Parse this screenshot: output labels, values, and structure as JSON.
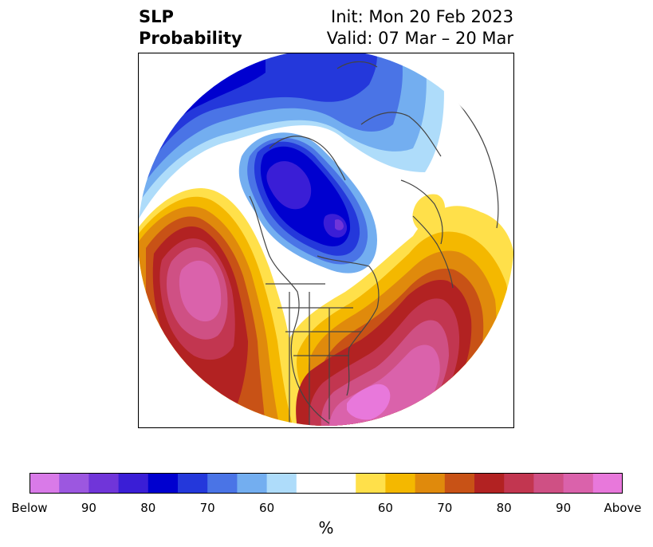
{
  "title": {
    "variable": "SLP",
    "product": "Probability",
    "init": "Init: Mon 20 Feb 2023",
    "valid": "Valid: 07 Mar – 20 Mar"
  },
  "colorbar": {
    "units": "%",
    "tick_labels": [
      "Below",
      "90",
      "80",
      "70",
      "60",
      "60",
      "70",
      "80",
      "90",
      "Above"
    ],
    "colors": [
      "#d97ae8",
      "#9c57e0",
      "#7035d9",
      "#3a1ed6",
      "#0000cf",
      "#2438db",
      "#4a74e6",
      "#73aef0",
      "#aedcfa",
      "#ffffff",
      "#ffffff",
      "#ffe04a",
      "#f4b800",
      "#e08a0c",
      "#c85216",
      "#b22222",
      "#c23650",
      "#cf5084",
      "#da62ab",
      "#e878db"
    ]
  },
  "map": {
    "projection": "north-polar-stereographic",
    "colors": {
      "deep_low": "#0000cf",
      "low_purple": "#3a1ed6",
      "mid_blue": "#2438db",
      "light_blue": "#4a74e6",
      "pale_blue": "#73aef0",
      "very_pale_blue": "#aedcfa",
      "yellow": "#ffe04a",
      "gold": "#f4b800",
      "orange": "#e08a0c",
      "rust": "#c85216",
      "red": "#b22222",
      "crimson": "#c23650",
      "rose": "#cf5084",
      "pink": "#da62ab",
      "magenta": "#e878db",
      "coastline": "#444444"
    }
  }
}
